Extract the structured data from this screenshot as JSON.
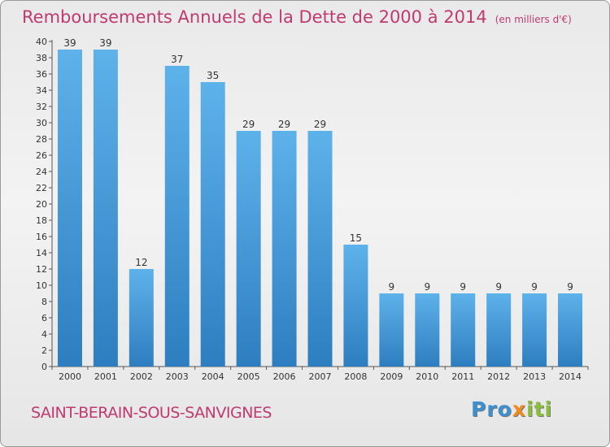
{
  "header": {
    "title": "Remboursements Annuels de la Dette de 2000 à 2014",
    "unit": "(en milliers d'€)"
  },
  "footer": {
    "commune": "SAINT-BERAIN-SOUS-SANVIGNES",
    "logo_letters": [
      {
        "ch": "P",
        "color": "#3d8fd0"
      },
      {
        "ch": "r",
        "color": "#3d8fd0"
      },
      {
        "ch": "o",
        "color": "#3d8fd0"
      },
      {
        "ch": "x",
        "color": "#f08a1e"
      },
      {
        "ch": "i",
        "color": "#8bbf3a"
      },
      {
        "ch": "t",
        "color": "#8bbf3a"
      },
      {
        "ch": "i",
        "color": "#8bbf3a"
      }
    ]
  },
  "chart_data": {
    "type": "bar",
    "categories": [
      "2000",
      "2001",
      "2002",
      "2003",
      "2004",
      "2005",
      "2006",
      "2007",
      "2008",
      "2009",
      "2010",
      "2011",
      "2012",
      "2013",
      "2014"
    ],
    "values": [
      39,
      39,
      12,
      37,
      35,
      29,
      29,
      29,
      15,
      9,
      9,
      9,
      9,
      9,
      9
    ],
    "title": "Remboursements Annuels de la Dette de 2000 à 2014",
    "ylim": [
      0,
      40
    ],
    "yticks": [
      0,
      2,
      4,
      6,
      8,
      10,
      12,
      14,
      16,
      18,
      20,
      22,
      24,
      26,
      28,
      30,
      32,
      34,
      36,
      38,
      40
    ],
    "grid": false,
    "bar_color_top": "#5eb2ea",
    "bar_color_bottom": "#2d7ec0",
    "label_color": "#333333"
  }
}
